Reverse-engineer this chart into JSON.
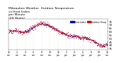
{
  "title": "Milwaukee Weather  Outdoor Temperature\nvs Heat Index\nper Minute\n(24 Hours)",
  "title_fontsize": 3.2,
  "bg_color": "#ffffff",
  "plot_bg_color": "#ffffff",
  "grid_color": "#999999",
  "temp_color": "#dd0000",
  "heat_color": "#0000cc",
  "legend_labels": [
    "Heat Index",
    "Outdoor Temp"
  ],
  "legend_colors": [
    "#0000cc",
    "#dd0000"
  ],
  "ylim": [
    33,
    78
  ],
  "xlim": [
    0,
    1440
  ],
  "yticks": [
    35,
    40,
    45,
    50,
    55,
    60,
    65,
    70,
    75
  ],
  "ytick_fontsize": 2.8,
  "xtick_fontsize": 2.2,
  "num_points": 1440,
  "seed": 7
}
